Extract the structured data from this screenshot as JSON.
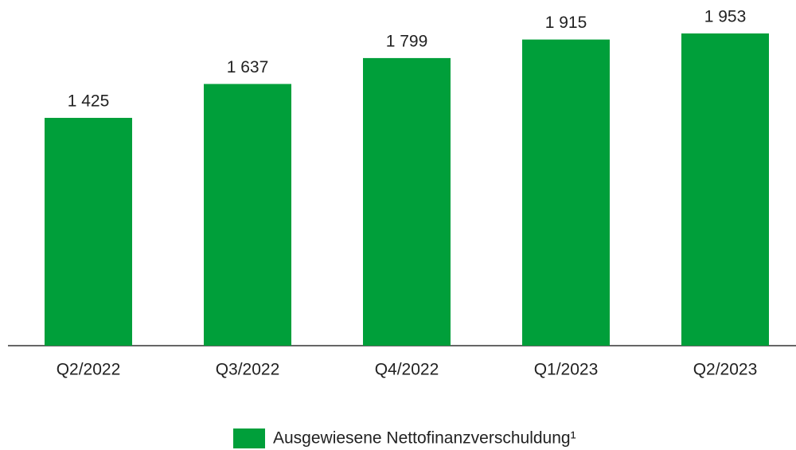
{
  "chart_data": {
    "type": "bar",
    "categories": [
      "Q2/2022",
      "Q3/2022",
      "Q4/2022",
      "Q1/2023",
      "Q2/2023"
    ],
    "series": [
      {
        "name": "Ausgewiesene Nettofinanzverschuldung¹",
        "color": "#009f3a",
        "values": [
          1425,
          1637,
          1799,
          1915,
          1953
        ],
        "value_labels": [
          "1 425",
          "1 637",
          "1 799",
          "1 915",
          "1 953"
        ]
      }
    ],
    "legend": "bottom"
  }
}
